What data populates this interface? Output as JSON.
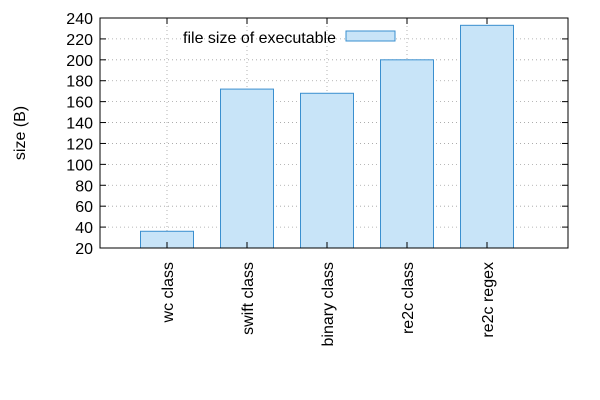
{
  "chart_data": {
    "type": "bar",
    "title": "",
    "xlabel": "",
    "ylabel": "size (B)",
    "ylim": [
      20,
      240
    ],
    "yticks": [
      20,
      40,
      60,
      80,
      100,
      120,
      140,
      160,
      180,
      200,
      220,
      240
    ],
    "grid": true,
    "legend_position": "top-left",
    "categories": [
      "wc class",
      "swift class",
      "binary class",
      "re2c class",
      "re2c regex"
    ],
    "series": [
      {
        "name": "file size of executable",
        "values": [
          36,
          172,
          168,
          200,
          233
        ],
        "fill": "#c8e4f8",
        "stroke": "#3a8fcf"
      }
    ]
  }
}
